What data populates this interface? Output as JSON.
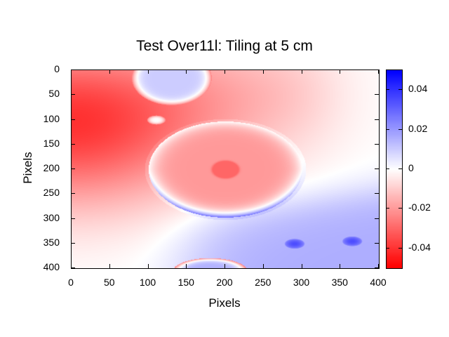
{
  "chart_data": {
    "type": "heatmap",
    "title": "Test Over11l: Tiling at 5 cm",
    "xlabel": "Pixels",
    "ylabel": "Pixels",
    "xlim": [
      0,
      400
    ],
    "ylim": [
      400,
      0
    ],
    "xticks": [
      "0",
      "50",
      "100",
      "150",
      "200",
      "250",
      "300",
      "350",
      "400"
    ],
    "yticks": [
      "0",
      "50",
      "100",
      "150",
      "200",
      "250",
      "300",
      "350",
      "400"
    ],
    "colorbar": {
      "range": [
        -0.05,
        0.05
      ],
      "ticks": [
        "0.04",
        "0.02",
        "0",
        "-0.02",
        "-0.04"
      ],
      "tick_values": [
        0.04,
        0.02,
        0,
        -0.02,
        -0.04
      ],
      "low_color": "#ff0000",
      "mid_color": "#ffffff",
      "high_color": "#0000ff"
    },
    "features": [
      {
        "name": "large-ellipse",
        "cx": 200,
        "cy": 200,
        "rx": 100,
        "ry": 97,
        "inside_value": -0.02,
        "lower_rim_value": 0.03
      },
      {
        "name": "center-spot",
        "cx": 200,
        "cy": 200,
        "r": 16,
        "value": -0.03
      },
      {
        "name": "top-ellipse",
        "cx": 130,
        "cy": 15,
        "rx": 52,
        "ry": 55,
        "inside_value": 0.01,
        "rim_value": -0.025
      },
      {
        "name": "small-ring",
        "cx": 110,
        "cy": 100,
        "r": 12,
        "rim_value": -0.025
      },
      {
        "name": "blue-spot-1",
        "cx": 290,
        "cy": 350,
        "r": 12,
        "value": 0.035
      },
      {
        "name": "blue-spot-2",
        "cx": 365,
        "cy": 345,
        "r": 12,
        "value": 0.035
      },
      {
        "name": "bottom-ellipse",
        "cx": 180,
        "cy": 405,
        "rx": 48,
        "ry": 26,
        "inside_value": 0.015,
        "rim_value": -0.025
      }
    ]
  }
}
